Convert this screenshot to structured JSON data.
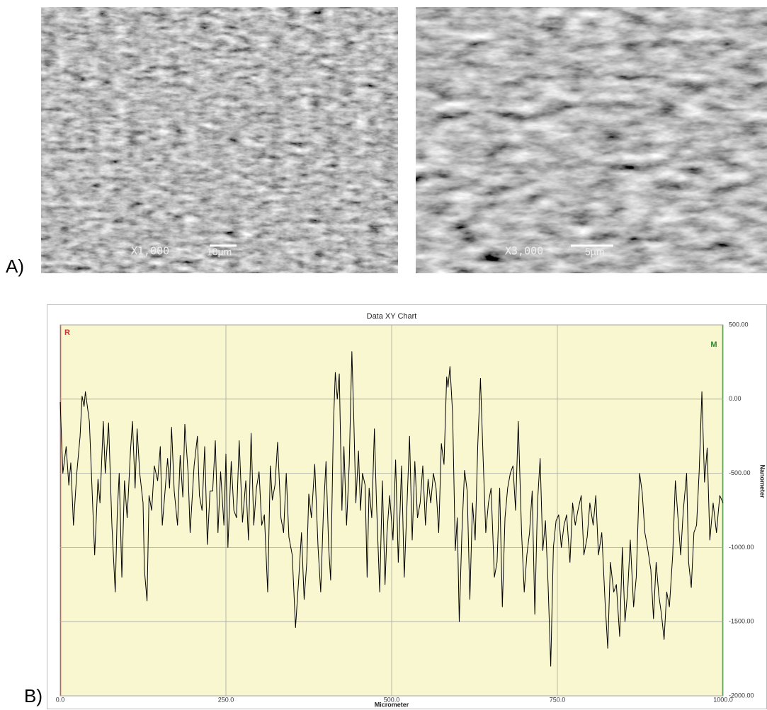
{
  "panels": {
    "a_label": "A)",
    "b_label": "B)"
  },
  "images": [
    {
      "magnification": "X1,000",
      "scale_bar": "10µm"
    },
    {
      "magnification": "X3,000",
      "scale_bar": "5µm"
    }
  ],
  "chart_data": {
    "type": "line",
    "title": "Data XY Chart",
    "x_label": "Micrometer",
    "y_label": "Nanometer",
    "cursor_labels": [
      "R",
      "M"
    ],
    "color": "#000000",
    "grid": true,
    "xlim": [
      0,
      1000
    ],
    "xticks": [
      {
        "value": 0,
        "label": "0.0"
      },
      {
        "value": 250,
        "label": "250.0"
      },
      {
        "value": 500,
        "label": "500.0"
      },
      {
        "value": 750,
        "label": "750.0"
      },
      {
        "value": 1000,
        "label": "1000.0"
      }
    ],
    "ylim": [
      -2000,
      500
    ],
    "yticks": [
      {
        "value": 500,
        "label": "500.00"
      },
      {
        "value": 0,
        "label": "0.00"
      },
      {
        "value": -500,
        "label": "-500.00"
      },
      {
        "value": -1000,
        "label": "-1000.00"
      },
      {
        "value": -1500,
        "label": "-1500.00"
      },
      {
        "value": -2000,
        "label": "-2000.00"
      }
    ],
    "x": [
      0,
      4,
      9,
      13,
      16,
      20,
      25,
      30,
      33,
      36,
      38,
      44,
      52,
      57,
      60,
      65,
      68,
      73,
      78,
      83,
      86,
      89,
      93,
      97,
      101,
      106,
      109,
      113,
      116,
      120,
      125,
      127,
      131,
      134,
      138,
      142,
      147,
      151,
      154,
      158,
      162,
      165,
      168,
      172,
      177,
      181,
      185,
      188,
      193,
      196,
      202,
      207,
      210,
      214,
      218,
      222,
      226,
      230,
      234,
      238,
      242,
      247,
      250,
      253,
      258,
      262,
      266,
      270,
      275,
      280,
      284,
      288,
      292,
      296,
      300,
      304,
      308,
      313,
      317,
      320,
      324,
      328,
      333,
      337,
      341,
      345,
      350,
      355,
      360,
      364,
      368,
      372,
      375,
      379,
      384,
      389,
      393,
      397,
      401,
      405,
      408,
      412,
      415,
      418,
      421,
      425,
      428,
      432,
      436,
      440,
      443,
      446,
      450,
      453,
      456,
      460,
      463,
      466,
      470,
      474,
      477,
      482,
      486,
      490,
      493,
      497,
      502,
      506,
      510,
      515,
      519,
      523,
      527,
      531,
      535,
      539,
      543,
      547,
      551,
      555,
      559,
      563,
      567,
      571,
      575,
      579,
      583,
      585,
      588,
      592,
      596,
      599,
      602,
      606,
      610,
      614,
      618,
      622,
      626,
      630,
      634,
      638,
      642,
      646,
      650,
      655,
      659,
      663,
      667,
      671,
      675,
      679,
      683,
      687,
      691,
      696,
      700,
      704,
      708,
      712,
      716,
      720,
      724,
      728,
      732,
      736,
      740,
      744,
      748,
      752,
      756,
      760,
      764,
      769,
      773,
      777,
      781,
      786,
      790,
      795,
      799,
      804,
      808,
      812,
      817,
      822,
      826,
      830,
      835,
      839,
      844,
      848,
      852,
      856,
      860,
      865,
      869,
      874,
      878,
      882,
      886,
      891,
      895,
      899,
      903,
      907,
      911,
      915,
      919,
      924,
      928,
      932,
      936,
      940,
      945,
      948,
      952,
      956,
      960,
      964,
      968,
      972,
      976,
      980,
      985,
      990,
      995,
      1000
    ],
    "values": [
      -20,
      -500,
      -320,
      -580,
      -430,
      -850,
      -500,
      -250,
      20,
      -50,
      50,
      -150,
      -1050,
      -540,
      -700,
      -150,
      -500,
      -160,
      -850,
      -1300,
      -780,
      -500,
      -1200,
      -550,
      -800,
      -350,
      -150,
      -600,
      -200,
      -500,
      -700,
      -1150,
      -1360,
      -650,
      -750,
      -450,
      -550,
      -320,
      -850,
      -630,
      -400,
      -600,
      -190,
      -620,
      -850,
      -380,
      -660,
      -170,
      -500,
      -900,
      -450,
      -250,
      -650,
      -750,
      -320,
      -980,
      -620,
      -620,
      -280,
      -900,
      -490,
      -850,
      -370,
      -1000,
      -420,
      -750,
      -800,
      -280,
      -830,
      -550,
      -950,
      -230,
      -850,
      -600,
      -490,
      -850,
      -780,
      -1300,
      -450,
      -680,
      -580,
      -290,
      -800,
      -900,
      -500,
      -930,
      -1050,
      -1540,
      -1200,
      -900,
      -1350,
      -1100,
      -640,
      -800,
      -440,
      -1000,
      -1300,
      -770,
      -420,
      -1000,
      -1220,
      -200,
      180,
      0,
      170,
      -750,
      -320,
      -850,
      -440,
      320,
      -150,
      -700,
      -350,
      -750,
      -500,
      -580,
      -1200,
      -600,
      -800,
      -200,
      -680,
      -1300,
      -550,
      -1250,
      -900,
      -650,
      -950,
      -410,
      -1100,
      -450,
      -1200,
      -730,
      -250,
      -950,
      -420,
      -800,
      -700,
      -450,
      -850,
      -540,
      -700,
      -500,
      -600,
      -900,
      -300,
      -440,
      150,
      80,
      220,
      -100,
      -1020,
      -800,
      -1500,
      -900,
      -480,
      -620,
      -1350,
      -700,
      -950,
      -300,
      140,
      -400,
      -900,
      -700,
      -600,
      -1200,
      -1100,
      -600,
      -1400,
      -800,
      -600,
      -500,
      -450,
      -750,
      -150,
      -900,
      -1300,
      -1050,
      -900,
      -620,
      -1450,
      -700,
      -400,
      -1020,
      -820,
      -1250,
      -1800,
      -1000,
      -820,
      -780,
      -1000,
      -850,
      -780,
      -1100,
      -700,
      -850,
      -750,
      -650,
      -1050,
      -930,
      -700,
      -850,
      -650,
      -1050,
      -900,
      -1370,
      -1680,
      -1100,
      -1300,
      -1250,
      -1600,
      -1000,
      -1500,
      -1300,
      -950,
      -1400,
      -1200,
      -500,
      -630,
      -900,
      -1000,
      -1150,
      -1480,
      -1100,
      -1320,
      -1450,
      -1620,
      -1300,
      -1400,
      -1050,
      -550,
      -800,
      -1050,
      -750,
      -500,
      -1100,
      -1270,
      -900,
      -850,
      -480,
      50,
      -560,
      -330,
      -950,
      -700,
      -900,
      -650,
      -700
    ]
  }
}
